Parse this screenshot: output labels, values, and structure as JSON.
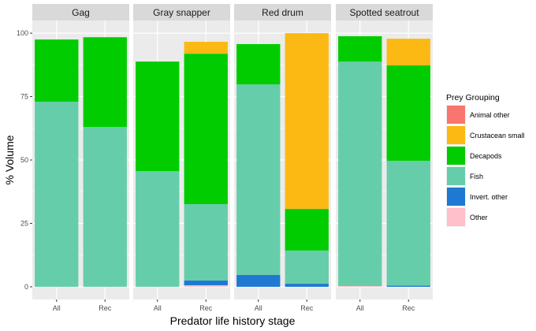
{
  "chart_data": {
    "type": "bar",
    "stacked": true,
    "title": "",
    "xlabel": "Predator life history stage",
    "ylabel": "% Volume",
    "ylim": [
      -5,
      105
    ],
    "yticks": [
      0,
      25,
      50,
      75,
      100
    ],
    "categories": [
      "All",
      "Rec"
    ],
    "grid": true,
    "legend": {
      "title": "Prey Grouping",
      "position": "right",
      "entries": [
        {
          "name": "Animal other",
          "color": "#F8766D"
        },
        {
          "name": "Crustacean small",
          "color": "#FDB913"
        },
        {
          "name": "Decapods",
          "color": "#00CC00"
        },
        {
          "name": "Fish",
          "color": "#66CDAA"
        },
        {
          "name": "Invert. other",
          "color": "#1F78D1"
        },
        {
          "name": "Other",
          "color": "#FFC0CB"
        }
      ]
    },
    "stack_order_bottom_to_top": [
      "Other",
      "Invert. other",
      "Fish",
      "Decapods",
      "Crustacean small",
      "Animal other"
    ],
    "facets": [
      {
        "name": "Gag",
        "bars": [
          {
            "category": "All",
            "values": {
              "Other": 0,
              "Invert. other": 0,
              "Fish": 73.0,
              "Decapods": 24.5,
              "Crustacean small": 0,
              "Animal other": 0
            }
          },
          {
            "category": "Rec",
            "values": {
              "Other": 0,
              "Invert. other": 0,
              "Fish": 63.0,
              "Decapods": 35.4,
              "Crustacean small": 0,
              "Animal other": 0
            }
          }
        ]
      },
      {
        "name": "Gray snapper",
        "bars": [
          {
            "category": "All",
            "values": {
              "Other": 0,
              "Invert. other": 0,
              "Fish": 45.6,
              "Decapods": 43.2,
              "Crustacean small": 0,
              "Animal other": 0
            }
          },
          {
            "category": "Rec",
            "values": {
              "Other": 0.6,
              "Invert. other": 1.9,
              "Fish": 30.1,
              "Decapods": 59.3,
              "Crustacean small": 4.7,
              "Animal other": 0
            }
          }
        ]
      },
      {
        "name": "Red drum",
        "bars": [
          {
            "category": "All",
            "values": {
              "Other": 0,
              "Invert. other": 4.7,
              "Fish": 75.1,
              "Decapods": 15.9,
              "Crustacean small": 0,
              "Animal other": 0
            }
          },
          {
            "category": "Rec",
            "values": {
              "Other": 0,
              "Invert. other": 1.2,
              "Fish": 13.1,
              "Decapods": 16.4,
              "Crustacean small": 69.3,
              "Animal other": 0
            }
          }
        ]
      },
      {
        "name": "Spotted seatrout",
        "bars": [
          {
            "category": "All",
            "values": {
              "Other": 0.3,
              "Invert. other": 0,
              "Fish": 88.5,
              "Decapods": 10.0,
              "Crustacean small": 0,
              "Animal other": 0
            }
          },
          {
            "category": "Rec",
            "values": {
              "Other": 0,
              "Invert. other": 0.5,
              "Fish": 49.2,
              "Decapods": 37.6,
              "Crustacean small": 10.5,
              "Animal other": 0
            }
          }
        ]
      }
    ]
  }
}
